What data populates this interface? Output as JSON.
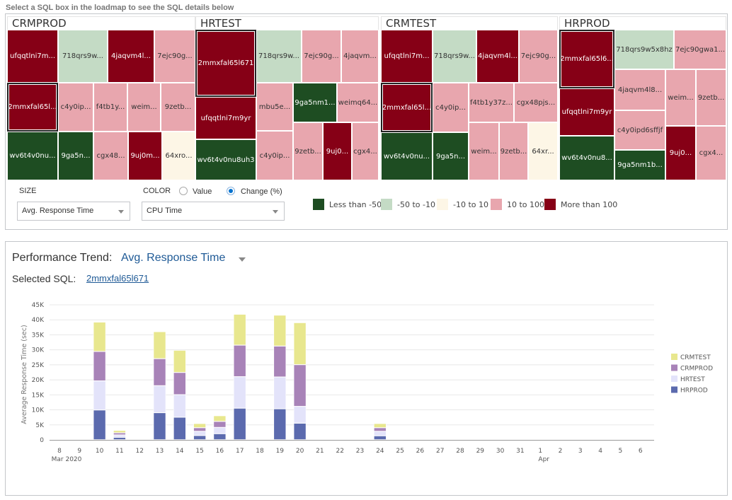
{
  "hint": "Select a SQL box in the loadmap to see the SQL details below",
  "legend_colors": {
    "less_than_-50": "#1e4d22",
    "-50_to_-10": "#c4dbc5",
    "-10_to_10": "#fdf6e6",
    "10_to_100": "#e8a6ae",
    "more_than_100": "#860016"
  },
  "treemaps": [
    {
      "title": "CRMPROD",
      "tiles": [
        {
          "label": "ufqqtlni7m...",
          "color": "dr"
        },
        {
          "label": "718qrs9w...",
          "color": "lg"
        },
        {
          "label": "4jaqvm4l...",
          "color": "dr"
        },
        {
          "label": "7ejc90g...",
          "color": "lr"
        },
        {
          "label": "2mmxfal65l...",
          "color": "dr",
          "selected": true
        },
        {
          "label": "c4y0ip...",
          "color": "lr"
        },
        {
          "label": "f4tb1y...",
          "color": "lr"
        },
        {
          "label": "weim...",
          "color": "lr"
        },
        {
          "label": "9zetb...",
          "color": "lr"
        },
        {
          "label": "wv6t4v0nu...",
          "color": "dg"
        },
        {
          "label": "9ga5n...",
          "color": "dg"
        },
        {
          "label": "cgx48...",
          "color": "lr"
        },
        {
          "label": "9uj0m...",
          "color": "dr"
        },
        {
          "label": "64xro...",
          "color": "ne"
        }
      ]
    },
    {
      "title": "HRTEST",
      "tiles": [
        {
          "label": "2mmxfal65l671",
          "color": "dr",
          "selected": true
        },
        {
          "label": "718qrs9w...",
          "color": "lg"
        },
        {
          "label": "7ejc90g...",
          "color": "lr"
        },
        {
          "label": "4jaqvm...",
          "color": "lr"
        },
        {
          "label": "ufqqtlni7m9yr",
          "color": "dr"
        },
        {
          "label": "mbu5e...",
          "color": "lr"
        },
        {
          "label": "9ga5nm1...",
          "color": "dg"
        },
        {
          "label": "weimq64...",
          "color": "lr"
        },
        {
          "label": "wv6t4v0nu8uh3",
          "color": "dg"
        },
        {
          "label": "c4y0ip...",
          "color": "lr"
        },
        {
          "label": "9zetb...",
          "color": "lr"
        },
        {
          "label": "9uj0...",
          "color": "dr"
        },
        {
          "label": "cgx4...",
          "color": "lr"
        }
      ]
    },
    {
      "title": "CRMTEST",
      "tiles": [
        {
          "label": "ufqqtlni7m...",
          "color": "dr"
        },
        {
          "label": "718qrs9w...",
          "color": "lg"
        },
        {
          "label": "4jaqvm4l...",
          "color": "dr"
        },
        {
          "label": "7ejc90g...",
          "color": "lr"
        },
        {
          "label": "2mmxfal65l...",
          "color": "dr",
          "selected": true
        },
        {
          "label": "c4y0ip...",
          "color": "lr"
        },
        {
          "label": "f4tb1y37z...",
          "color": "lr"
        },
        {
          "label": "cgx48pjs...",
          "color": "lr"
        },
        {
          "label": "wv6t4v0nu...",
          "color": "dg"
        },
        {
          "label": "9ga5n...",
          "color": "dg"
        },
        {
          "label": "weim...",
          "color": "lr"
        },
        {
          "label": "9zetb...",
          "color": "lr"
        },
        {
          "label": "64xr...",
          "color": "ne"
        }
      ]
    },
    {
      "title": "HRPROD",
      "tiles": [
        {
          "label": "2mmxfal65l6...",
          "color": "dr",
          "selected": true
        },
        {
          "label": "718qrs9w5x8hz",
          "color": "lg"
        },
        {
          "label": "7ejc90gwa1...",
          "color": "lr"
        },
        {
          "label": "ufqqtlni7m9yr",
          "color": "dr"
        },
        {
          "label": "4jaqvm4l8...",
          "color": "lr"
        },
        {
          "label": "weim...",
          "color": "lr"
        },
        {
          "label": "9zetb...",
          "color": "lr"
        },
        {
          "label": "c4y0ipd6sffjf",
          "color": "lr"
        },
        {
          "label": "wv6t4v0nu8...",
          "color": "dg"
        },
        {
          "label": "9ga5nm1b...",
          "color": "dg"
        },
        {
          "label": "9uj0...",
          "color": "dr"
        },
        {
          "label": "cgx4...",
          "color": "lr"
        }
      ]
    }
  ],
  "controls": {
    "size_label": "SIZE",
    "size_value": "Avg. Response Time",
    "color_label": "COLOR",
    "color_radio_value": "Value",
    "color_radio_change": "Change (%)",
    "color_selected": "Change (%)",
    "color_value": "CPU Time"
  },
  "color_legend": [
    {
      "label": "Less than -50",
      "color": "#1e4d22"
    },
    {
      "label": "-50 to -10",
      "color": "#c4dbc5"
    },
    {
      "label": "-10 to 10",
      "color": "#fdf6e6"
    },
    {
      "label": "10 to 100",
      "color": "#e8a6ae"
    },
    {
      "label": "More than 100",
      "color": "#860016"
    }
  ],
  "trend": {
    "title": "Performance Trend:",
    "metric": "Avg. Response Time",
    "selected_sql_label": "Selected SQL:",
    "selected_sql": "2mmxfal65l671"
  },
  "chart_data": {
    "type": "bar",
    "stacked": true,
    "title": "",
    "xlabel": "",
    "ylabel": "Average Response Time (sec)",
    "ylim": [
      0,
      45000
    ],
    "yticks": [
      0,
      5000,
      10000,
      15000,
      20000,
      25000,
      30000,
      35000,
      40000,
      45000
    ],
    "ytick_labels": [
      "0",
      "5K",
      "10K",
      "15K",
      "20K",
      "25K",
      "30K",
      "35K",
      "40K",
      "45K"
    ],
    "grid": true,
    "legend_position": "right",
    "categories": [
      "8",
      "9",
      "10",
      "11",
      "12",
      "13",
      "14",
      "15",
      "16",
      "17",
      "18",
      "19",
      "20",
      "21",
      "22",
      "23",
      "24",
      "25",
      "26",
      "27",
      "28",
      "29",
      "30",
      "31",
      "1",
      "2",
      "3",
      "4",
      "5",
      "6"
    ],
    "category_sublabels": {
      "8": "Mar 2020",
      "1": "Apr"
    },
    "series": [
      {
        "name": "HRPROD",
        "color": "#5b6aae",
        "values": [
          0,
          0,
          9900,
          800,
          0,
          9000,
          7500,
          1400,
          2000,
          10500,
          0,
          10300,
          5500,
          0,
          0,
          0,
          1300,
          0,
          0,
          0,
          0,
          0,
          0,
          0,
          0,
          0,
          0,
          0,
          0,
          0
        ]
      },
      {
        "name": "HRTEST",
        "color": "#e3e3fa",
        "values": [
          0,
          0,
          9700,
          800,
          0,
          9000,
          7500,
          1400,
          2100,
          10500,
          0,
          10600,
          5600,
          0,
          0,
          0,
          1500,
          0,
          0,
          0,
          0,
          0,
          0,
          0,
          0,
          0,
          0,
          0,
          0,
          0
        ]
      },
      {
        "name": "CRMPROD",
        "color": "#a883b8",
        "values": [
          0,
          0,
          9800,
          700,
          0,
          9000,
          7400,
          1200,
          2000,
          10500,
          0,
          10300,
          13900,
          0,
          0,
          0,
          1200,
          0,
          0,
          0,
          0,
          0,
          0,
          0,
          0,
          0,
          0,
          0,
          0,
          0
        ]
      },
      {
        "name": "CRMTEST",
        "color": "#e8e78e",
        "values": [
          0,
          0,
          9800,
          800,
          0,
          9000,
          7400,
          1400,
          1900,
          10300,
          0,
          10300,
          14000,
          0,
          0,
          0,
          1400,
          0,
          0,
          0,
          0,
          0,
          0,
          0,
          0,
          0,
          0,
          0,
          0,
          0
        ]
      }
    ],
    "legend_order": [
      "CRMTEST",
      "CRMPROD",
      "HRTEST",
      "HRPROD"
    ]
  }
}
